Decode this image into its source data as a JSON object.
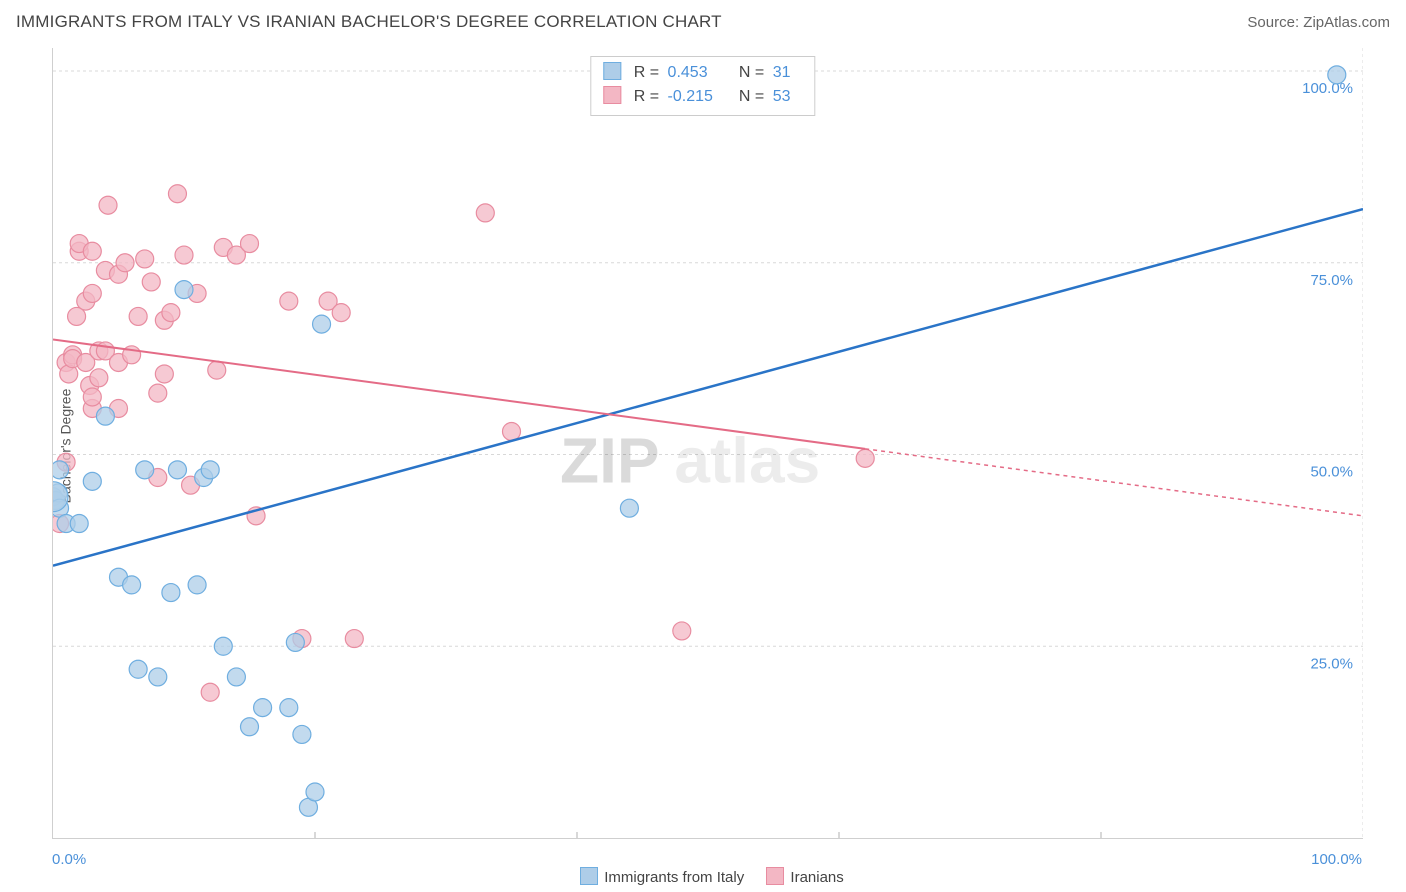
{
  "title": "IMMIGRANTS FROM ITALY VS IRANIAN BACHELOR'S DEGREE CORRELATION CHART",
  "source_label": "Source: ",
  "source_value": "ZipAtlas.com",
  "y_axis_label": "Bachelor's Degree",
  "watermark": "ZIPatlas",
  "chart": {
    "type": "scatter_with_trend",
    "xlim": [
      0,
      100
    ],
    "ylim": [
      0,
      103
    ],
    "x_tick_labels": [
      "0.0%",
      "100.0%"
    ],
    "y_ticks": [
      25,
      50,
      75,
      100
    ],
    "y_tick_labels": [
      "25.0%",
      "50.0%",
      "75.0%",
      "100.0%"
    ],
    "grid_color": "#d8d8d8",
    "background_color": "#ffffff",
    "series": [
      {
        "name": "Immigrants from Italy",
        "r_value": "0.453",
        "n_value": "31",
        "color_fill": "#aecde8",
        "color_stroke": "#6faee0",
        "trend_color": "#2a74c7",
        "trend_y_at_x0": 35.5,
        "trend_y_at_x100": 82.0,
        "points": [
          [
            0,
            44.5
          ],
          [
            0.2,
            44
          ],
          [
            0.4,
            45
          ],
          [
            0.5,
            43
          ],
          [
            0.5,
            48
          ],
          [
            1,
            41
          ],
          [
            2,
            41
          ],
          [
            3,
            46.5
          ],
          [
            4,
            55
          ],
          [
            5,
            34
          ],
          [
            6,
            33
          ],
          [
            6.5,
            22
          ],
          [
            7,
            48
          ],
          [
            8,
            21
          ],
          [
            9,
            32
          ],
          [
            9.5,
            48
          ],
          [
            10,
            71.5
          ],
          [
            11,
            33
          ],
          [
            11.5,
            47
          ],
          [
            12,
            48
          ],
          [
            13,
            25
          ],
          [
            14,
            21
          ],
          [
            15,
            14.5
          ],
          [
            16,
            17
          ],
          [
            18,
            17
          ],
          [
            18.5,
            25.5
          ],
          [
            19,
            13.5
          ],
          [
            19.5,
            4
          ],
          [
            20,
            6
          ],
          [
            20.5,
            67
          ],
          [
            44,
            43
          ],
          [
            98,
            99.5
          ]
        ],
        "big_point": [
          0,
          44.5
        ]
      },
      {
        "name": "Iranians",
        "r_value": "-0.215",
        "n_value": "53",
        "color_fill": "#f3b7c4",
        "color_stroke": "#e88ca0",
        "trend_color": "#e46b86",
        "trend_solid_end_x": 62,
        "trend_y_at_x0": 65.0,
        "trend_y_at_x100": 42.0,
        "points": [
          [
            0.5,
            41
          ],
          [
            1,
            49
          ],
          [
            1,
            62
          ],
          [
            1.2,
            60.5
          ],
          [
            1.5,
            63
          ],
          [
            1.5,
            62.5
          ],
          [
            1.8,
            68
          ],
          [
            2,
            76.5
          ],
          [
            2,
            77.5
          ],
          [
            2.5,
            70
          ],
          [
            2.5,
            62
          ],
          [
            2.8,
            59
          ],
          [
            3,
            56
          ],
          [
            3,
            57.5
          ],
          [
            3,
            71
          ],
          [
            3,
            76.5
          ],
          [
            3.5,
            63.5
          ],
          [
            3.5,
            60
          ],
          [
            4,
            63.5
          ],
          [
            4,
            74
          ],
          [
            4.2,
            82.5
          ],
          [
            5,
            56
          ],
          [
            5,
            62
          ],
          [
            5,
            73.5
          ],
          [
            5.5,
            75
          ],
          [
            6,
            63
          ],
          [
            6.5,
            68
          ],
          [
            7,
            75.5
          ],
          [
            7.5,
            72.5
          ],
          [
            8,
            47
          ],
          [
            8,
            58
          ],
          [
            8.5,
            60.5
          ],
          [
            8.5,
            67.5
          ],
          [
            9,
            68.5
          ],
          [
            9.5,
            84
          ],
          [
            10,
            76
          ],
          [
            10.5,
            46
          ],
          [
            11,
            71
          ],
          [
            12,
            19
          ],
          [
            12.5,
            61
          ],
          [
            13,
            77
          ],
          [
            14,
            76
          ],
          [
            15,
            77.5
          ],
          [
            15.5,
            42
          ],
          [
            18,
            70
          ],
          [
            19,
            26
          ],
          [
            21,
            70
          ],
          [
            22,
            68.5
          ],
          [
            23,
            26
          ],
          [
            33,
            81.5
          ],
          [
            35,
            53
          ],
          [
            48,
            27
          ],
          [
            62,
            49.5
          ]
        ]
      }
    ]
  },
  "legend": {
    "series1_label": "Immigrants from Italy",
    "series2_label": "Iranians"
  }
}
